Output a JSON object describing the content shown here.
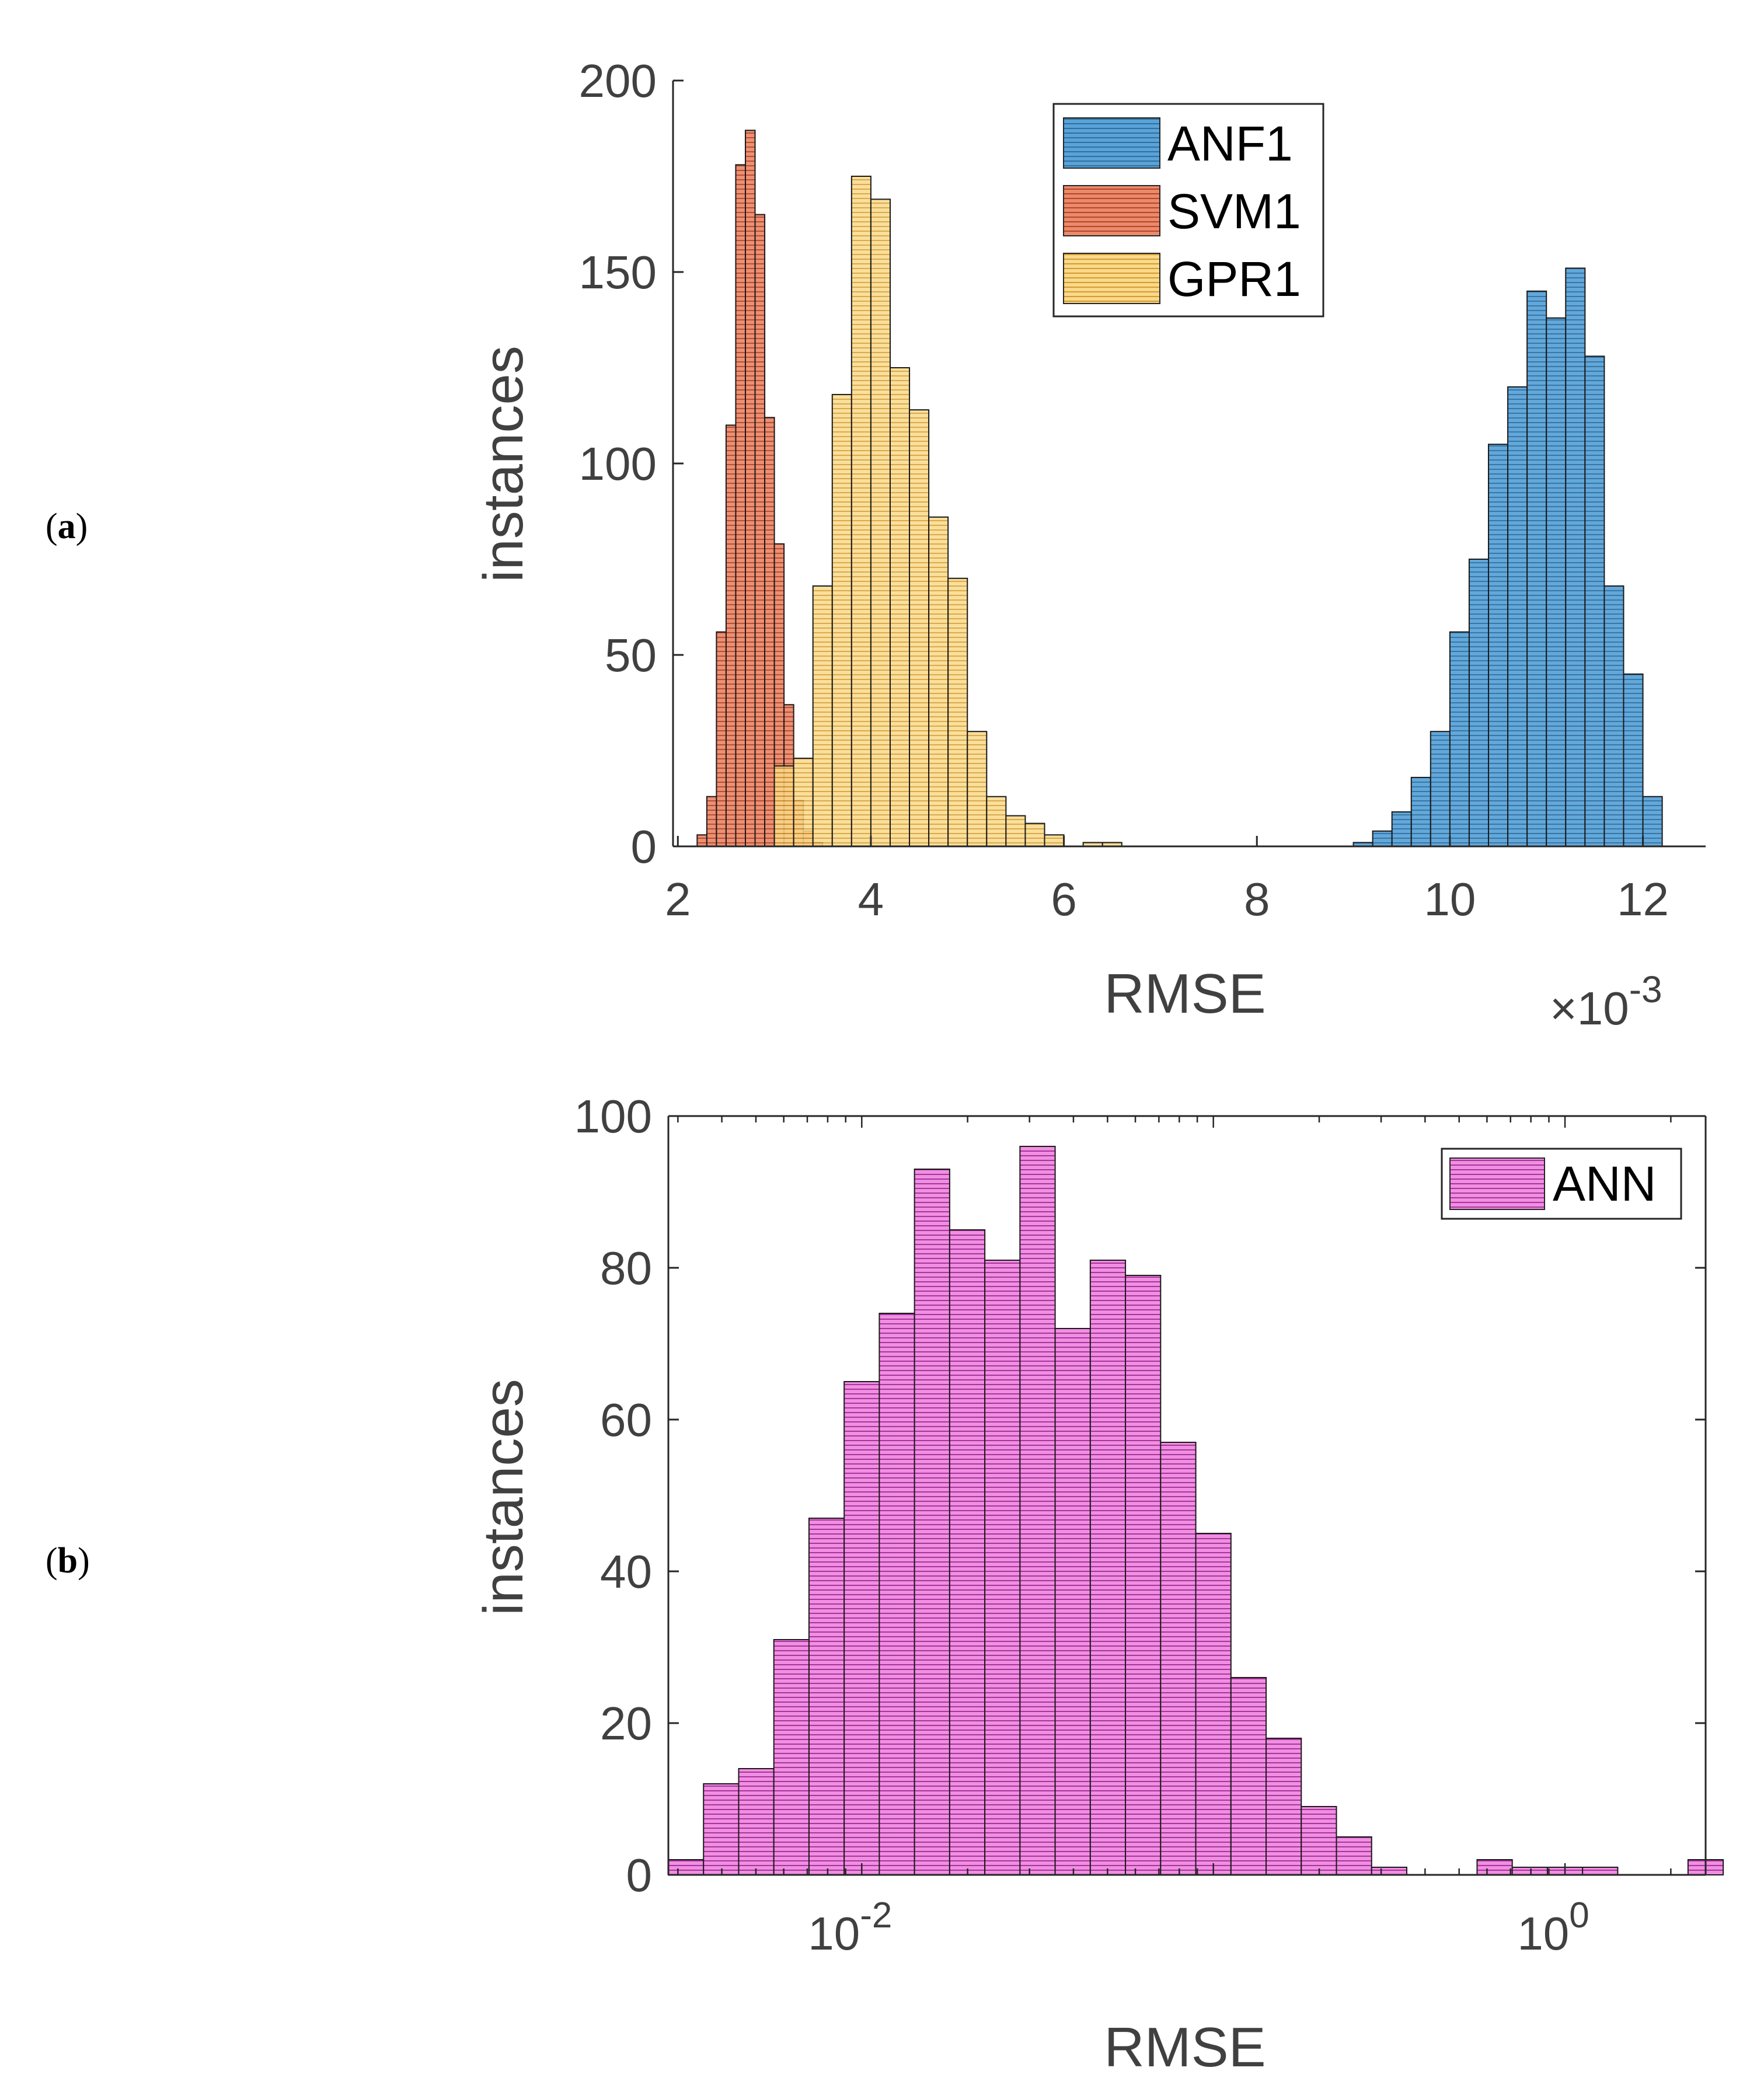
{
  "panels": [
    {
      "id": "a",
      "label_open": "(",
      "label_letter": "a",
      "label_close": ")"
    },
    {
      "id": "b",
      "label_open": "(",
      "label_letter": "b",
      "label_close": ")"
    }
  ],
  "colors": {
    "ANF1": "#4f97cf",
    "SVM1": "#e0704e",
    "GPR1": "#f4c76a",
    "ANN": "#e66fd6",
    "axis": "#262626",
    "text": "#404040"
  },
  "chart_data": [
    {
      "type": "histogram",
      "title": "",
      "xlabel": "RMSE",
      "ylabel": "instances",
      "x_exponent_label": {
        "base": "×10",
        "exponent": "-3"
      },
      "xlim": [
        1.95,
        12.65
      ],
      "ylim": [
        0,
        200
      ],
      "xticks": [
        2,
        4,
        6,
        8,
        10,
        12
      ],
      "yticks": [
        0,
        50,
        100,
        150,
        200
      ],
      "legend_position": "top-right",
      "grid": false,
      "series": [
        {
          "name": "ANF1",
          "bin_edges": [
            9.0,
            9.2,
            9.4,
            9.6,
            9.8,
            10.0,
            10.2,
            10.4,
            10.6,
            10.8,
            11.0,
            11.2,
            11.4,
            11.6,
            11.8,
            12.0,
            12.2
          ],
          "counts": [
            1,
            4,
            9,
            18,
            30,
            56,
            75,
            105,
            120,
            145,
            138,
            151,
            128,
            68,
            45,
            13,
            1
          ]
        },
        {
          "name": "SVM1",
          "bin_edges": [
            2.2,
            2.3,
            2.4,
            2.5,
            2.6,
            2.7,
            2.8,
            2.9,
            3.0,
            3.1,
            3.2,
            3.3,
            3.4,
            3.5
          ],
          "counts": [
            3,
            13,
            56,
            110,
            178,
            187,
            165,
            112,
            79,
            37,
            12,
            4,
            1
          ]
        },
        {
          "name": "GPR1",
          "bin_edges": [
            3.0,
            3.2,
            3.4,
            3.6,
            3.8,
            4.0,
            4.2,
            4.4,
            4.6,
            4.8,
            5.0,
            5.2,
            5.4,
            5.6,
            5.8,
            6.0,
            6.2,
            6.4,
            6.6
          ],
          "counts": [
            21,
            23,
            68,
            118,
            175,
            169,
            125,
            114,
            86,
            70,
            30,
            13,
            8,
            6,
            3,
            0,
            1,
            1
          ]
        }
      ]
    },
    {
      "type": "histogram",
      "title": "",
      "xlabel": "RMSE",
      "ylabel": "instances",
      "x_scale": "log",
      "xlim_log10": [
        -2.55,
        0.4
      ],
      "ylim": [
        0,
        100
      ],
      "xtick_labels": [
        {
          "base": "10",
          "exponent": "-2"
        },
        {
          "base": "10",
          "exponent": "0"
        }
      ],
      "xtick_values_log10": [
        -2,
        0
      ],
      "yticks": [
        0,
        20,
        40,
        60,
        80,
        100
      ],
      "legend_position": "top-right",
      "grid": false,
      "series": [
        {
          "name": "ANN",
          "bin_start_log10": -2.55,
          "bin_width_log10": 0.1,
          "counts": [
            2,
            12,
            14,
            31,
            47,
            65,
            74,
            93,
            85,
            81,
            96,
            72,
            81,
            79,
            57,
            45,
            26,
            18,
            9,
            5,
            1,
            0,
            0,
            2,
            1,
            1,
            1,
            0,
            0,
            2
          ]
        }
      ]
    }
  ]
}
